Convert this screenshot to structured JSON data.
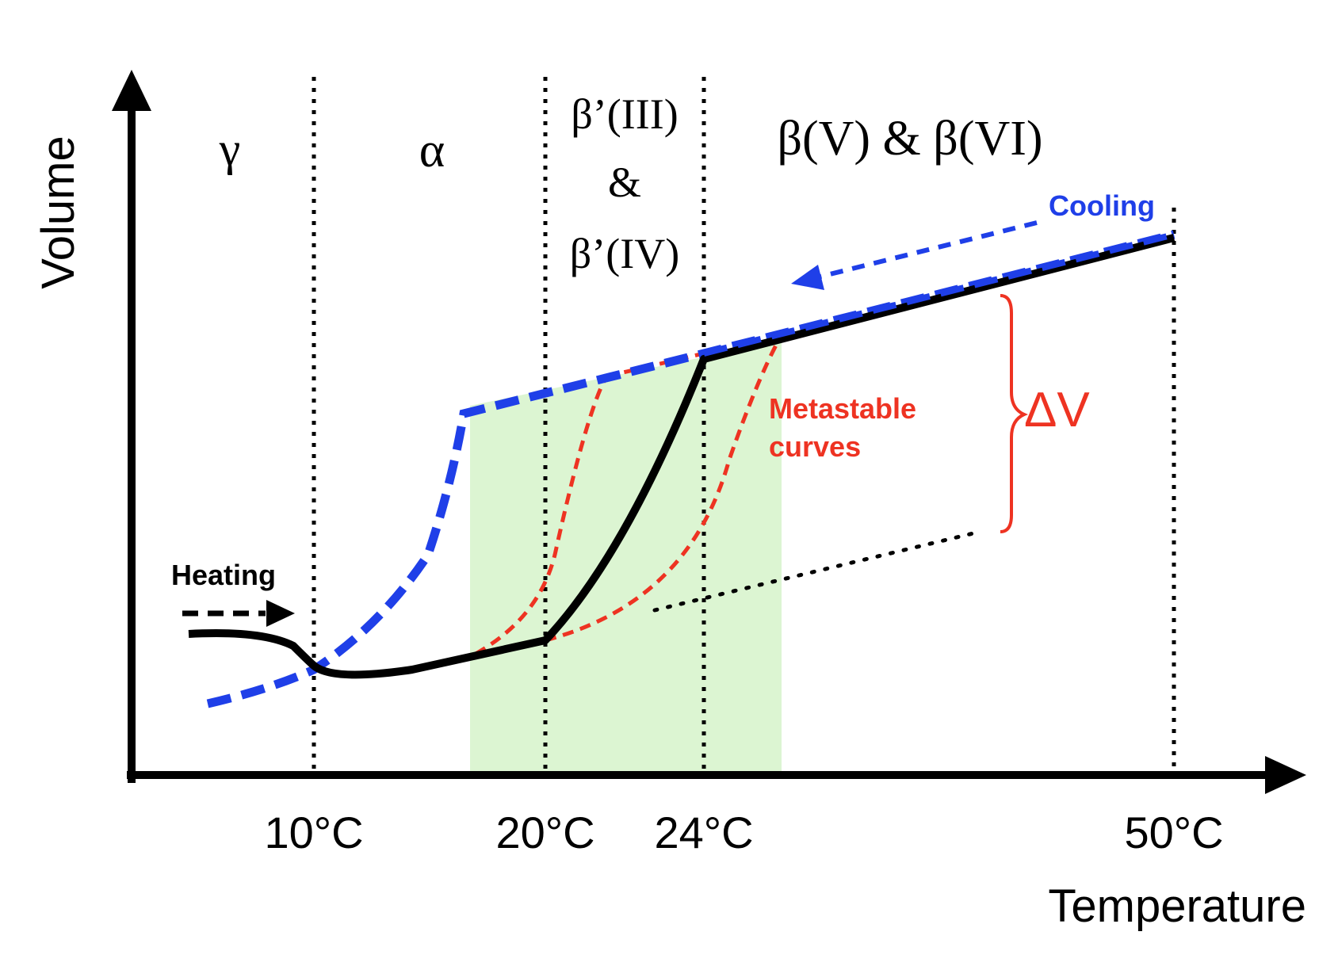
{
  "axes": {
    "ylabel": "Volume",
    "xlabel": "Temperature",
    "ticks": [
      "10°C",
      "20°C",
      "24°C",
      "50°C"
    ]
  },
  "phases": {
    "gamma": "γ",
    "alpha": "α",
    "beta_prime_1": "β’(III)",
    "amp": "&",
    "beta_prime_2": "β’(IV)",
    "beta": "β(V) & β(VI)"
  },
  "annotations": {
    "heating": "Heating",
    "cooling": "Cooling",
    "metastable_line1": "Metastable",
    "metastable_line2": "curves",
    "delta_v": "ΔV"
  },
  "colors": {
    "heating_curve": "#000000",
    "cooling_curve": "#1f3fe8",
    "metastable": "#ee3322",
    "shade": "#dcf5d2"
  }
}
